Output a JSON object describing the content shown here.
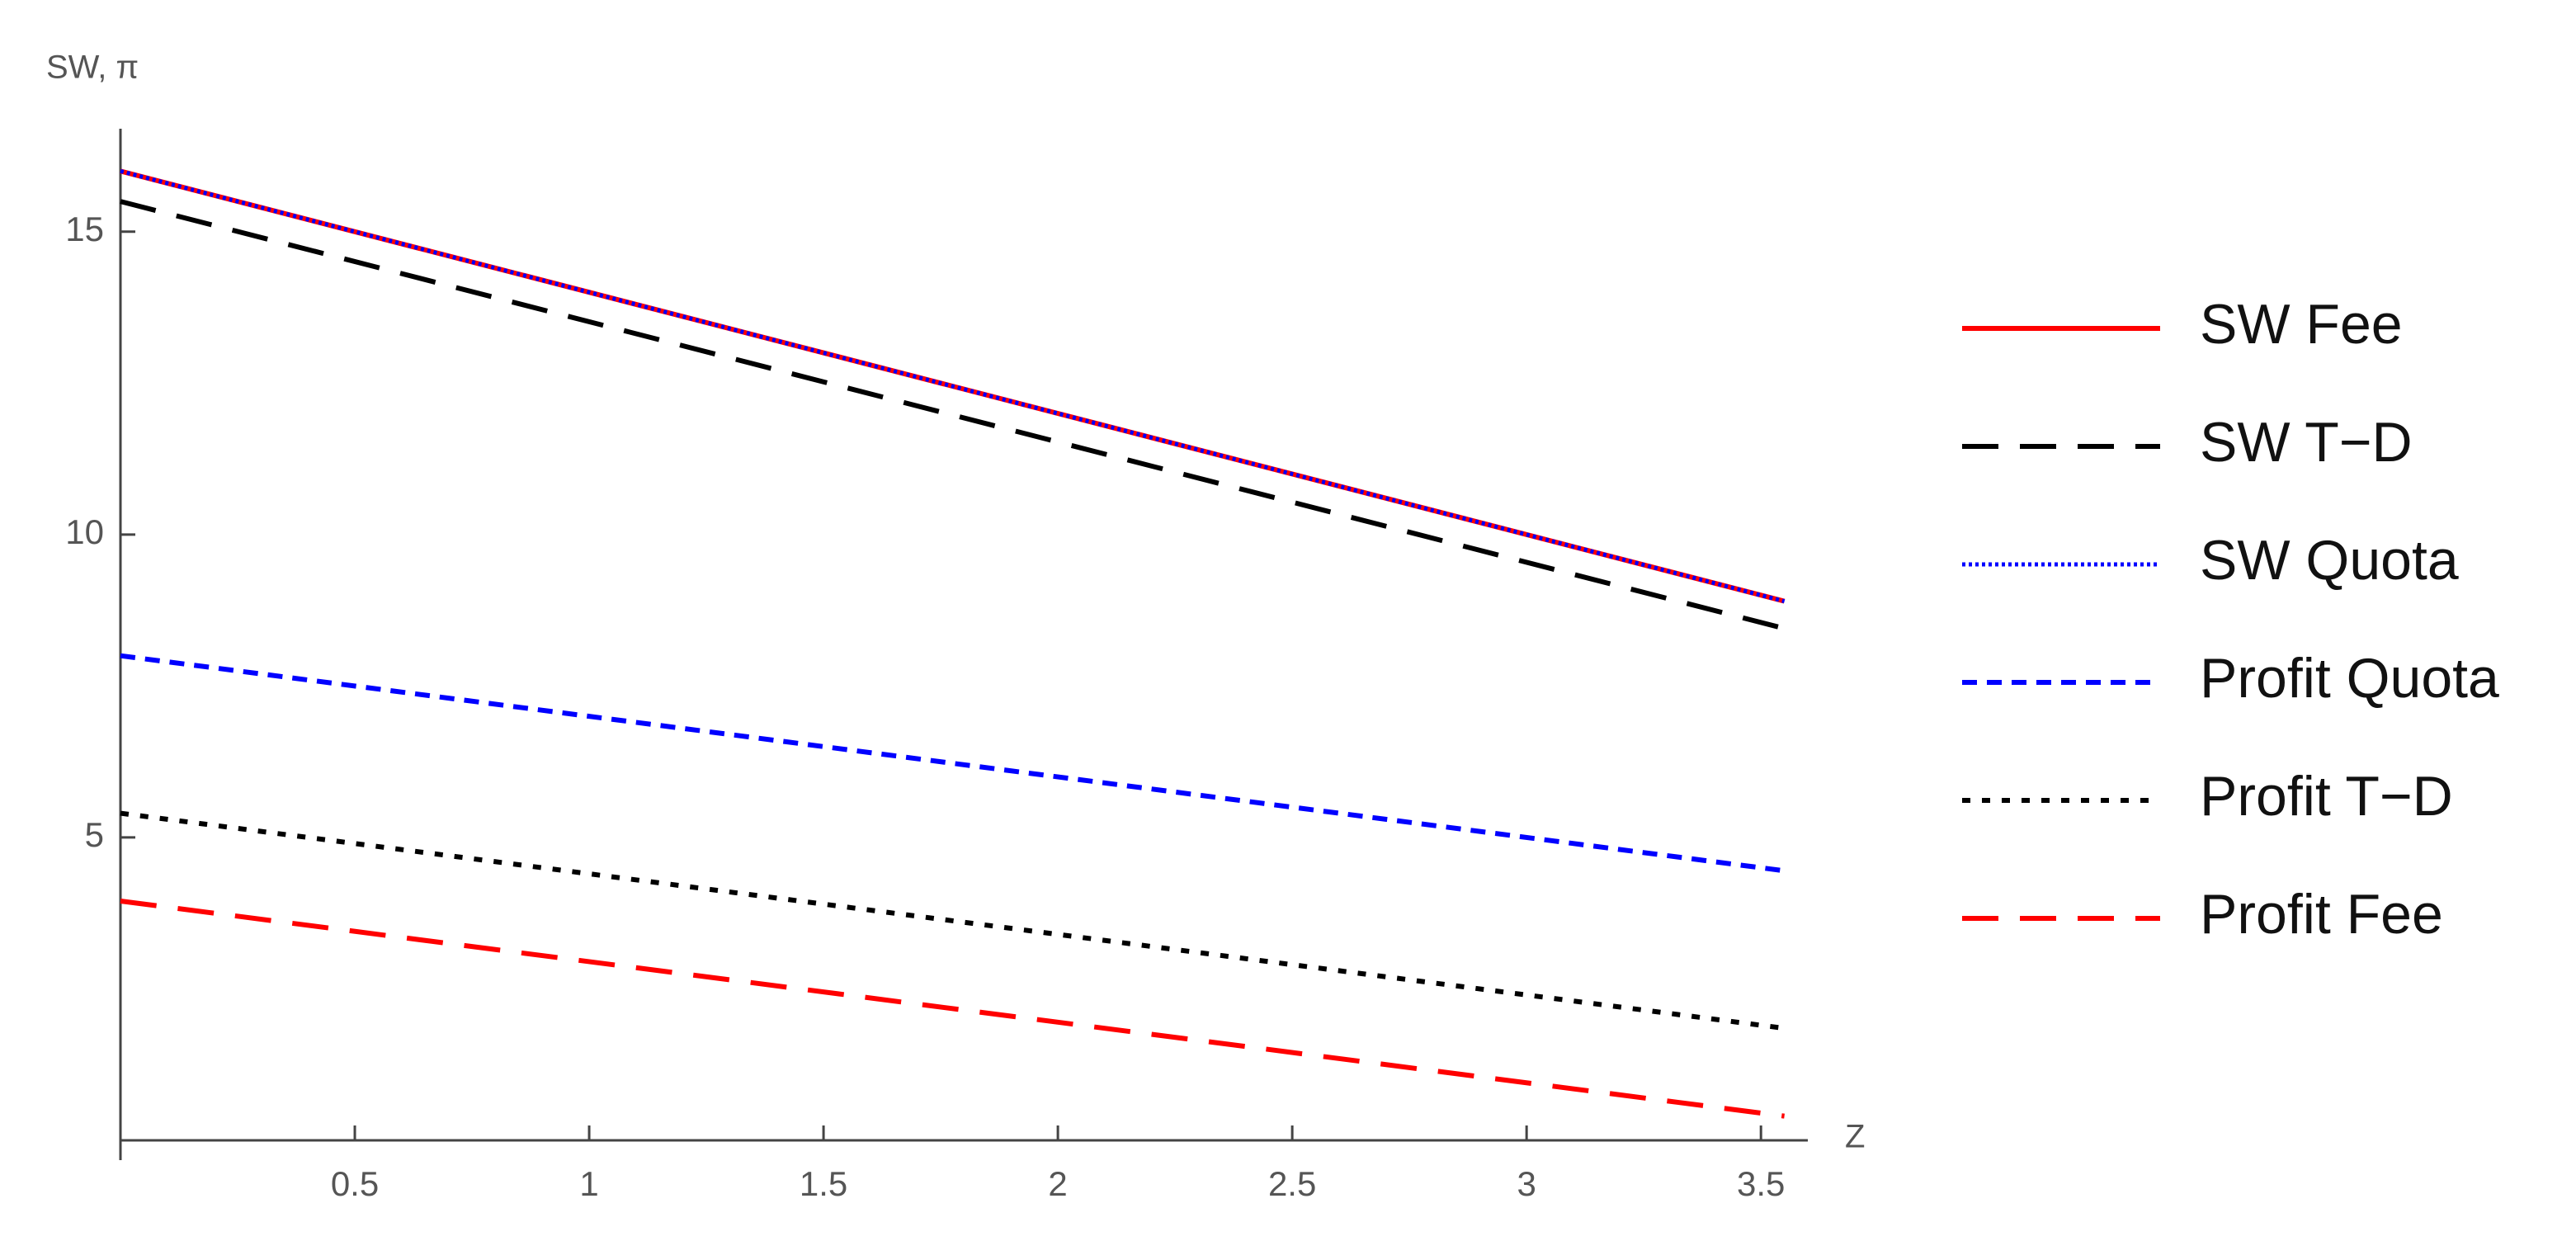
{
  "chart_data": {
    "type": "line",
    "y_label": "SW, π",
    "x_label": "Z",
    "x": [
      0,
      3.55
    ],
    "xlim": [
      0,
      3.6
    ],
    "ylim": [
      0,
      16.7
    ],
    "xticks": [
      0.5,
      1.0,
      1.5,
      2.0,
      2.5,
      3.0,
      3.5
    ],
    "yticks": [
      5,
      10,
      15
    ],
    "legend": "right",
    "series": [
      {
        "name": "SW Fee",
        "color": "#ff0000",
        "dash": "solid",
        "values": [
          16,
          8.9
        ]
      },
      {
        "name": "SW T−D",
        "color": "#000000",
        "dash": "long-dash",
        "values": [
          15.5,
          8.45
        ]
      },
      {
        "name": "SW Quota",
        "color": "#0000ff",
        "dash": "dotted",
        "values": [
          16,
          8.9
        ]
      },
      {
        "name": "Profit Quota",
        "color": "#0000ff",
        "dash": "dashed",
        "values": [
          8,
          4.45
        ]
      },
      {
        "name": "Profit T−D",
        "color": "#000000",
        "dash": "short-dash",
        "values": [
          5.4,
          1.85
        ]
      },
      {
        "name": "Profit Fee",
        "color": "#ff0000",
        "dash": "long-dash",
        "values": [
          3.95,
          0.4
        ]
      }
    ]
  }
}
